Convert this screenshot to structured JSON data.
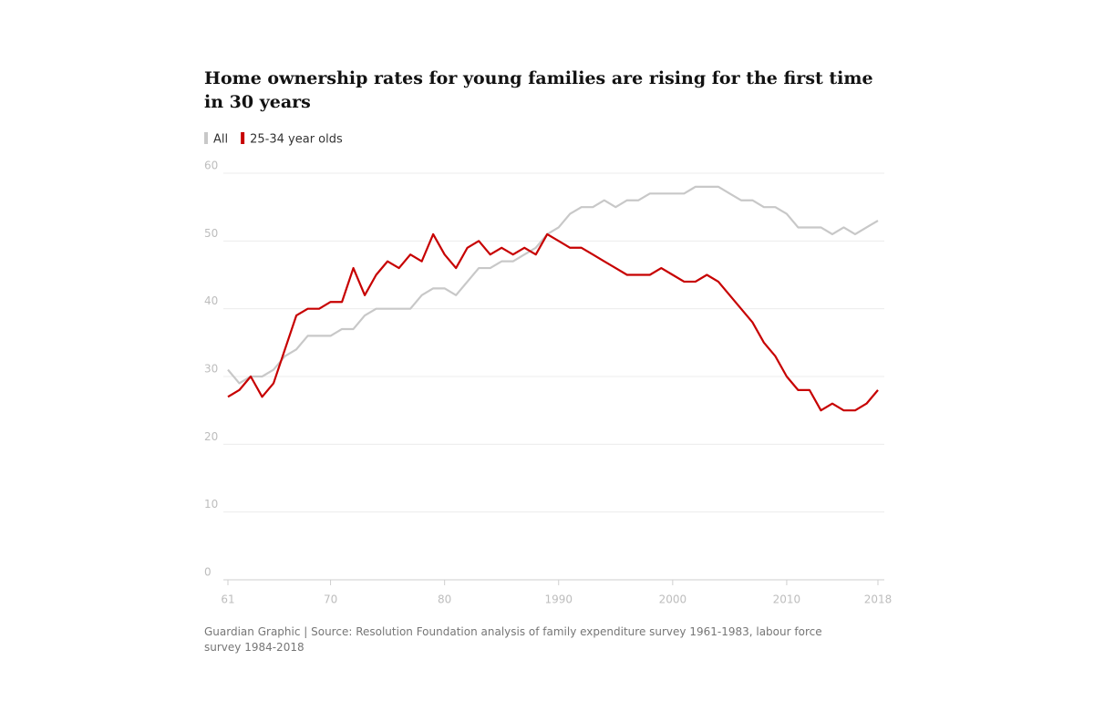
{
  "chart_data": {
    "type": "line",
    "title": "Home ownership rates for young families are rising for the first time in 30 years",
    "source": "Guardian Graphic | Source: Resolution Foundation analysis of family expenditure survey 1961-1983, labour force survey 1984-2018",
    "x": [
      1961,
      1962,
      1963,
      1964,
      1965,
      1966,
      1967,
      1968,
      1969,
      1970,
      1971,
      1972,
      1973,
      1974,
      1975,
      1976,
      1977,
      1978,
      1979,
      1980,
      1981,
      1982,
      1983,
      1984,
      1985,
      1986,
      1987,
      1988,
      1989,
      1990,
      1991,
      1992,
      1993,
      1994,
      1995,
      1996,
      1997,
      1998,
      1999,
      2000,
      2001,
      2002,
      2003,
      2004,
      2005,
      2006,
      2007,
      2008,
      2009,
      2010,
      2011,
      2012,
      2013,
      2014,
      2015,
      2016,
      2017,
      2018
    ],
    "series": [
      {
        "name": "All",
        "color": "#c8c8c8",
        "values": [
          31,
          29,
          30,
          30,
          31,
          33,
          34,
          36,
          36,
          36,
          37,
          37,
          39,
          40,
          40,
          40,
          40,
          42,
          43,
          43,
          42,
          44,
          46,
          46,
          47,
          47,
          48,
          49,
          51,
          52,
          54,
          55,
          55,
          56,
          55,
          56,
          56,
          57,
          57,
          57,
          57,
          58,
          58,
          58,
          57,
          56,
          56,
          55,
          55,
          54,
          52,
          52,
          52,
          51,
          52,
          51,
          52,
          53
        ]
      },
      {
        "name": "25-34 year olds",
        "color": "#c70000",
        "values": [
          27,
          28,
          30,
          27,
          29,
          34,
          39,
          40,
          40,
          41,
          41,
          46,
          42,
          45,
          47,
          46,
          48,
          47,
          51,
          48,
          46,
          49,
          50,
          48,
          49,
          48,
          49,
          48,
          51,
          50,
          49,
          49,
          48,
          47,
          46,
          45,
          45,
          45,
          46,
          45,
          44,
          44,
          45,
          44,
          42,
          40,
          38,
          35,
          33,
          30,
          28,
          28,
          25,
          26,
          25,
          25,
          26,
          28
        ]
      }
    ],
    "xlim": [
      1961,
      2018
    ],
    "xticks": [
      {
        "value": 1961,
        "label": "61"
      },
      {
        "value": 1970,
        "label": "70"
      },
      {
        "value": 1980,
        "label": "80"
      },
      1990,
      2000,
      2010,
      2018
    ],
    "ylim": [
      0,
      60
    ],
    "yticks": [
      0,
      10,
      20,
      30,
      40,
      50,
      60
    ],
    "grid": true
  }
}
